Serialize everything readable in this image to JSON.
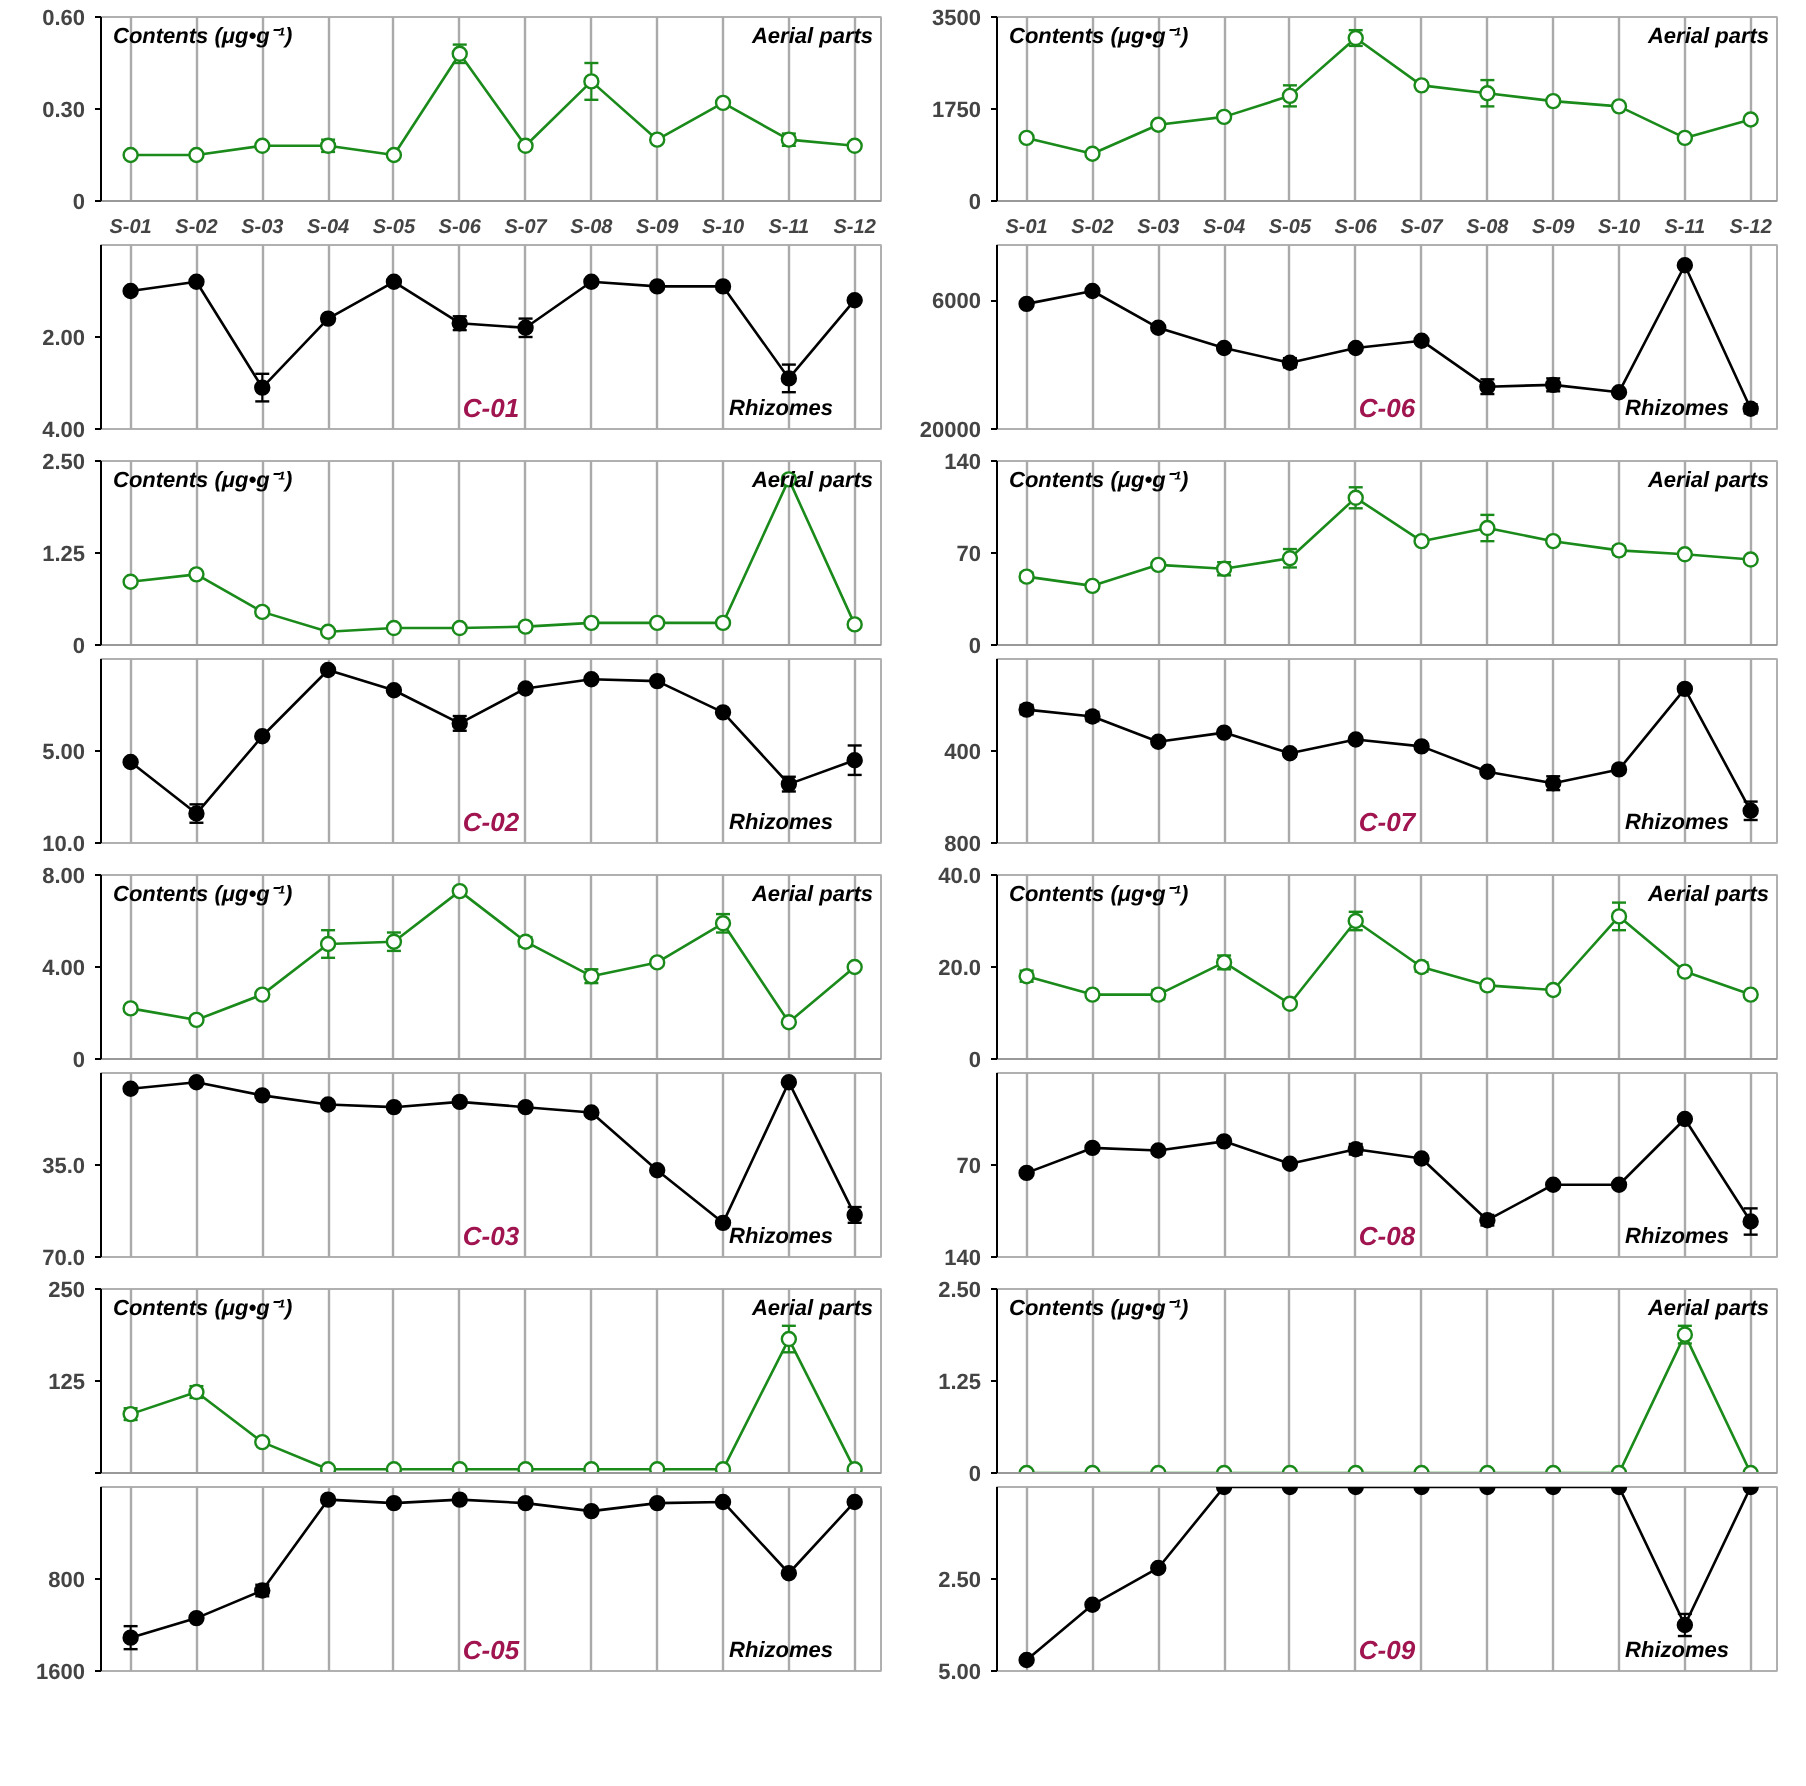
{
  "chart_data": [
    {
      "type": "line",
      "ylabel": "Contents (μg•g⁻¹)",
      "categories": [
        "S-01",
        "S-02",
        "S-03",
        "S-04",
        "S-05",
        "S-06",
        "S-07",
        "S-08",
        "S-09",
        "S-10",
        "S-11",
        "S-12"
      ],
      "ylim": [
        0,
        0.6
      ],
      "yticks": [
        0,
        {
          "value": 0.3,
          "label": "0.30"
        },
        {
          "value": 0.6,
          "label": "0.60"
        }
      ],
      "grid": "x",
      "marker": "circle",
      "series": [
        {
          "name": "Aerial parts",
          "color": "#1a8a1a",
          "values": [
            0.15,
            0.15,
            0.18,
            0.18,
            0.15,
            0.48,
            0.18,
            0.39,
            0.2,
            0.32,
            0.2,
            0.18
          ],
          "errors": [
            null,
            null,
            null,
            0.02,
            null,
            0.03,
            null,
            0.06,
            null,
            null,
            0.02,
            null
          ]
        }
      ]
    },
    {
      "type": "line",
      "ylabel": "Contents (μg•g⁻¹)",
      "categories": [
        "S-01",
        "S-02",
        "S-03",
        "S-04",
        "S-05",
        "S-06",
        "S-07",
        "S-08",
        "S-09",
        "S-10",
        "S-11",
        "S-12"
      ],
      "ylim": [
        0,
        3500
      ],
      "yticks": [
        0,
        1750,
        3500
      ],
      "grid": "x",
      "marker": "circle",
      "series": [
        {
          "name": "Aerial parts",
          "color": "#1a8a1a",
          "values": [
            1200,
            900,
            1450,
            1600,
            2000,
            3100,
            2200,
            2050,
            1900,
            1800,
            1200,
            1550
          ],
          "errors": [
            null,
            null,
            60,
            60,
            200,
            150,
            null,
            250,
            null,
            null,
            null,
            null
          ]
        }
      ]
    },
    {
      "type": "line",
      "title": "C-01",
      "categories": [
        null,
        null,
        null,
        null,
        null,
        null,
        null,
        null,
        null,
        null,
        null,
        null
      ],
      "ylim": [
        4,
        0
      ],
      "yticks": [
        {
          "value": 2,
          "label": "2.00"
        },
        {
          "value": 4,
          "label": "4.00"
        }
      ],
      "grid": "x",
      "marker": "circle",
      "series": [
        {
          "name": "Rhizomes",
          "color": "#000000",
          "values": [
            1.0,
            0.8,
            3.1,
            1.6,
            0.8,
            1.7,
            1.8,
            0.8,
            0.9,
            0.9,
            2.9,
            1.2
          ],
          "errors": [
            null,
            null,
            0.3,
            null,
            null,
            0.15,
            0.2,
            null,
            null,
            null,
            0.3,
            null
          ]
        }
      ]
    },
    {
      "type": "line",
      "title": "C-06",
      "categories": [
        null,
        null,
        null,
        null,
        null,
        null,
        null,
        null,
        null,
        null,
        null,
        null
      ],
      "ylim": [
        20000,
        0
      ],
      "yticks": [
        6000,
        20000
      ],
      "grid": "x",
      "marker": "circle",
      "series": [
        {
          "name": "Rhizomes",
          "color": "#000000",
          "values": [
            6400,
            5000,
            9000,
            11200,
            12800,
            11200,
            10400,
            15400,
            15200,
            16000,
            2200,
            17800
          ],
          "errors": [
            null,
            null,
            null,
            null,
            500,
            null,
            null,
            800,
            700,
            null,
            null,
            500
          ]
        }
      ]
    },
    {
      "type": "line",
      "ylabel": "Contents (μg•g⁻¹)",
      "categories": [
        null,
        null,
        null,
        null,
        null,
        null,
        null,
        null,
        null,
        null,
        null,
        null
      ],
      "ylim": [
        0,
        2.5
      ],
      "yticks": [
        0,
        {
          "value": 1.25,
          "label": "1.25"
        },
        {
          "value": 2.5,
          "label": "2.50"
        }
      ],
      "grid": "x",
      "marker": "circle",
      "series": [
        {
          "name": "Aerial parts",
          "color": "#1a8a1a",
          "values": [
            0.86,
            0.96,
            0.45,
            0.18,
            0.23,
            0.23,
            0.25,
            0.3,
            0.3,
            0.3,
            2.25,
            0.28
          ],
          "errors": [
            null,
            null,
            0.05,
            null,
            null,
            null,
            null,
            null,
            null,
            null,
            0.05,
            null
          ]
        }
      ]
    },
    {
      "type": "line",
      "ylabel": "Contents (μg•g⁻¹)",
      "categories": [
        null,
        null,
        null,
        null,
        null,
        null,
        null,
        null,
        null,
        null,
        null,
        null
      ],
      "ylim": [
        0,
        140
      ],
      "yticks": [
        0,
        70,
        140
      ],
      "grid": "x",
      "marker": "circle",
      "series": [
        {
          "name": "Aerial parts",
          "color": "#1a8a1a",
          "values": [
            52,
            45,
            61,
            58,
            66,
            112,
            79,
            89,
            79,
            72,
            69,
            65
          ],
          "errors": [
            3,
            null,
            null,
            5,
            7,
            8,
            null,
            10,
            null,
            3,
            null,
            null
          ]
        }
      ]
    },
    {
      "type": "line",
      "title": "C-02",
      "categories": [
        null,
        null,
        null,
        null,
        null,
        null,
        null,
        null,
        null,
        null,
        null,
        null
      ],
      "ylim": [
        10,
        0
      ],
      "yticks": [
        {
          "value": 5,
          "label": "5.00"
        },
        {
          "value": 10,
          "label": "10.0"
        }
      ],
      "grid": "x",
      "marker": "circle",
      "series": [
        {
          "name": "Rhizomes",
          "color": "#000000",
          "values": [
            5.6,
            8.4,
            4.2,
            0.6,
            1.7,
            3.5,
            1.6,
            1.1,
            1.2,
            2.9,
            6.8,
            5.5
          ],
          "errors": [
            null,
            0.5,
            null,
            null,
            null,
            0.4,
            null,
            null,
            null,
            null,
            0.4,
            0.8
          ]
        }
      ]
    },
    {
      "type": "line",
      "title": "C-07",
      "categories": [
        null,
        null,
        null,
        null,
        null,
        null,
        null,
        null,
        null,
        null,
        null,
        null
      ],
      "ylim": [
        800,
        0
      ],
      "yticks": [
        400,
        800
      ],
      "grid": "x",
      "marker": "circle",
      "series": [
        {
          "name": "Rhizomes",
          "color": "#000000",
          "values": [
            220,
            250,
            360,
            320,
            410,
            350,
            380,
            490,
            540,
            480,
            130,
            660
          ],
          "errors": [
            20,
            20,
            null,
            null,
            15,
            null,
            null,
            null,
            30,
            15,
            null,
            40
          ]
        }
      ]
    },
    {
      "type": "line",
      "ylabel": "Contents (μg•g⁻¹)",
      "categories": [
        null,
        null,
        null,
        null,
        null,
        null,
        null,
        null,
        null,
        null,
        null,
        null
      ],
      "ylim": [
        0,
        8
      ],
      "yticks": [
        0,
        {
          "value": 4,
          "label": "4.00"
        },
        {
          "value": 8,
          "label": "8.00"
        }
      ],
      "grid": "x",
      "marker": "circle",
      "series": [
        {
          "name": "Aerial parts",
          "color": "#1a8a1a",
          "values": [
            2.2,
            1.7,
            2.8,
            5.0,
            5.1,
            7.3,
            5.1,
            3.6,
            4.2,
            5.9,
            1.6,
            4.0
          ],
          "errors": [
            null,
            null,
            null,
            0.6,
            0.4,
            null,
            0.2,
            0.3,
            null,
            0.4,
            null,
            null
          ]
        }
      ]
    },
    {
      "type": "line",
      "ylabel": "Contents (μg•g⁻¹)",
      "categories": [
        null,
        null,
        null,
        null,
        null,
        null,
        null,
        null,
        null,
        null,
        null,
        null
      ],
      "ylim": [
        0,
        40
      ],
      "yticks": [
        0,
        {
          "value": 20,
          "label": "20.0"
        },
        {
          "value": 40,
          "label": "40.0"
        }
      ],
      "grid": "x",
      "marker": "circle",
      "series": [
        {
          "name": "Aerial parts",
          "color": "#1a8a1a",
          "values": [
            18,
            14,
            14,
            21,
            12,
            30,
            20,
            16,
            15,
            31,
            19,
            14
          ],
          "errors": [
            1.2,
            null,
            1,
            1.5,
            null,
            2,
            1,
            null,
            null,
            3,
            null,
            null
          ]
        }
      ]
    },
    {
      "type": "line",
      "title": "C-03",
      "categories": [
        null,
        null,
        null,
        null,
        null,
        null,
        null,
        null,
        null,
        null,
        null,
        null
      ],
      "ylim": [
        70,
        0
      ],
      "yticks": [
        {
          "value": 35,
          "label": "35.0"
        },
        {
          "value": 70,
          "label": "70.0"
        }
      ],
      "grid": "x",
      "marker": "circle",
      "series": [
        {
          "name": "Rhizomes",
          "color": "#000000",
          "values": [
            6,
            3.5,
            8.5,
            12,
            13,
            11,
            13,
            15,
            37,
            57,
            3.5,
            54
          ],
          "errors": [
            null,
            null,
            null,
            null,
            null,
            null,
            null,
            null,
            null,
            null,
            null,
            3
          ]
        }
      ]
    },
    {
      "type": "line",
      "title": "C-08",
      "categories": [
        null,
        null,
        null,
        null,
        null,
        null,
        null,
        null,
        null,
        null,
        null,
        null
      ],
      "ylim": [
        140,
        0
      ],
      "yticks": [
        70,
        140
      ],
      "grid": "x",
      "marker": "circle",
      "series": [
        {
          "name": "Rhizomes",
          "color": "#000000",
          "values": [
            76,
            57,
            59,
            52,
            69,
            58,
            65,
            112,
            85,
            85,
            35,
            113
          ],
          "errors": [
            null,
            null,
            null,
            null,
            null,
            4,
            null,
            4,
            null,
            null,
            null,
            10
          ]
        }
      ]
    },
    {
      "type": "line",
      "ylabel": "Contents (μg•g⁻¹)",
      "categories": [
        null,
        null,
        null,
        null,
        null,
        null,
        null,
        null,
        null,
        null,
        null,
        null
      ],
      "ylim": [
        0,
        250
      ],
      "yticks": [
        {
          "value": 0,
          "label": null
        },
        125,
        250
      ],
      "grid": "x",
      "marker": "circle",
      "series": [
        {
          "name": "Aerial parts",
          "color": "#1a8a1a",
          "values": [
            80,
            110,
            42,
            5,
            5,
            5,
            5,
            5,
            5,
            5,
            182,
            5
          ],
          "errors": [
            8,
            8,
            null,
            null,
            null,
            null,
            null,
            null,
            null,
            null,
            18,
            null
          ]
        }
      ]
    },
    {
      "type": "line",
      "ylabel": "Contents (μg•g⁻¹)",
      "categories": [
        null,
        null,
        null,
        null,
        null,
        null,
        null,
        null,
        null,
        null,
        null,
        null
      ],
      "ylim": [
        0,
        2.5
      ],
      "yticks": [
        0,
        {
          "value": 1.25,
          "label": "1.25"
        },
        {
          "value": 2.5,
          "label": "2.50"
        }
      ],
      "grid": "x",
      "marker": "circle",
      "series": [
        {
          "name": "Aerial parts",
          "color": "#1a8a1a",
          "values": [
            0,
            0,
            0,
            0,
            0,
            0,
            0,
            0,
            0,
            0,
            1.88,
            0
          ],
          "errors": [
            null,
            null,
            null,
            null,
            null,
            null,
            null,
            null,
            null,
            null,
            0.12,
            null
          ]
        }
      ]
    },
    {
      "type": "line",
      "title": "C-05",
      "categories": [
        null,
        null,
        null,
        null,
        null,
        null,
        null,
        null,
        null,
        null,
        null,
        null
      ],
      "ylim": [
        1600,
        0
      ],
      "yticks": [
        800,
        1600
      ],
      "grid": "x",
      "marker": "circle",
      "series": [
        {
          "name": "Rhizomes",
          "color": "#000000",
          "values": [
            1310,
            1140,
            900,
            110,
            140,
            110,
            140,
            210,
            140,
            130,
            750,
            130
          ],
          "errors": [
            100,
            null,
            50,
            null,
            null,
            null,
            null,
            null,
            null,
            null,
            null,
            null
          ]
        }
      ]
    },
    {
      "type": "line",
      "title": "C-09",
      "categories": [
        null,
        null,
        null,
        null,
        null,
        null,
        null,
        null,
        null,
        null,
        null,
        null
      ],
      "ylim": [
        5,
        0
      ],
      "yticks": [
        {
          "value": 2.5,
          "label": "2.50"
        },
        {
          "value": 5,
          "label": "5.00"
        }
      ],
      "grid": "x",
      "marker": "circle",
      "series": [
        {
          "name": "Rhizomes",
          "color": "#000000",
          "values": [
            4.7,
            3.2,
            2.2,
            0,
            0,
            0,
            0,
            0,
            0,
            0,
            3.75,
            0
          ],
          "errors": [
            null,
            null,
            null,
            null,
            null,
            null,
            null,
            null,
            null,
            null,
            0.3,
            null
          ]
        }
      ]
    }
  ]
}
